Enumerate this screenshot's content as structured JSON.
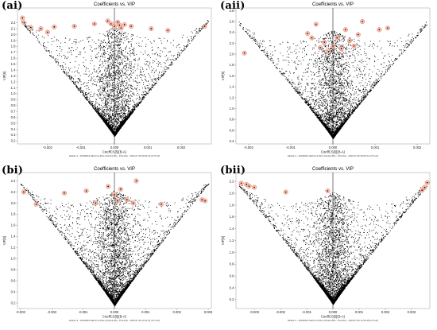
{
  "chart_data": [
    {
      "type": "scatter",
      "panel_label": "(ai)",
      "title": "Coefficients vs. VIP",
      "xlabel": "CoeffCS[5](B-A)",
      "ylabel": "VIP[5]",
      "footnote": "EZ4A1-3 - 20230610-SECCI-4-Pilot (CH4A1-B4) - PLS-DA) - 2023-07-26 09:51:20 (UTC+8)",
      "xlim": [
        -0.0029,
        0.0029
      ],
      "ylim": [
        0.15,
        2.45
      ],
      "xticks": [
        "-0.002",
        "-0.001",
        "0.000",
        "0.001",
        "0.002"
      ],
      "xtick_values": [
        -0.002,
        -0.001,
        0,
        0.001,
        0.002
      ],
      "yticks": [
        "0.2",
        "0.3",
        "0.4",
        "0.5",
        "0.6",
        "0.7",
        "0.8",
        "0.9",
        "1.0",
        "1.1",
        "1.2",
        "1.3",
        "1.4",
        "1.5",
        "1.6",
        "1.7",
        "1.8",
        "1.9",
        "2.0",
        "2.1",
        "2.2"
      ],
      "ytick_values": [
        0.2,
        0.3,
        0.4,
        0.5,
        0.6,
        0.7,
        0.8,
        0.9,
        1.0,
        1.1,
        1.2,
        1.3,
        1.4,
        1.5,
        1.6,
        1.7,
        1.8,
        1.9,
        2.0,
        2.1,
        2.2
      ],
      "ymin_data": 0.28,
      "n_points": 4200,
      "highlighted": [
        [
          -0.00275,
          2.28
        ],
        [
          -0.0027,
          2.2
        ],
        [
          -0.0025,
          2.12
        ],
        [
          -0.0022,
          2.1
        ],
        [
          -0.002,
          2.04
        ],
        [
          -0.0018,
          2.13
        ],
        [
          -0.0012,
          2.14
        ],
        [
          -0.0006,
          2.18
        ],
        [
          -0.0002,
          2.23
        ],
        [
          -0.0001,
          2.18
        ],
        [
          0.0,
          2.14
        ],
        [
          0.0001,
          2.21
        ],
        [
          0.00015,
          2.16
        ],
        [
          0.0002,
          2.11
        ],
        [
          0.0003,
          2.17
        ],
        [
          0.0005,
          2.14
        ],
        [
          0.0011,
          2.1
        ],
        [
          0.0016,
          2.07
        ],
        [
          0.0027,
          2.14
        ]
      ]
    },
    {
      "type": "scatter",
      "panel_label": "(aii)",
      "title": "Coefficients vs. VIP",
      "xlabel": "CoeffCS[5](B-A)",
      "ylabel": "VIP[5]",
      "footnote": "EZ4A1-3 - 20230610-SECCI-4-Pilot (CH4A1-B4) - PLS-DA) - 2023-07-26 09:54:31 (UTC+8)",
      "xlim": [
        -0.0023,
        0.0023
      ],
      "ylim": [
        0.35,
        2.85
      ],
      "xticks": [
        "-0.002",
        "-0.001",
        "0.000",
        "0.001",
        "0.002"
      ],
      "xtick_values": [
        -0.002,
        -0.001,
        0,
        0.001,
        0.002
      ],
      "yticks": [
        "0.4",
        "0.6",
        "0.8",
        "1.0",
        "1.2",
        "1.4",
        "1.6",
        "1.8",
        "2.0",
        "2.2",
        "2.4",
        "2.6",
        "2.8"
      ],
      "ytick_values": [
        0.4,
        0.6,
        0.8,
        1.0,
        1.2,
        1.4,
        1.6,
        1.8,
        2.0,
        2.2,
        2.4,
        2.6,
        2.8
      ],
      "ymin_data": 0.45,
      "n_points": 4200,
      "highlighted": [
        [
          -0.0021,
          2.02
        ],
        [
          -0.0006,
          2.38
        ],
        [
          -0.0005,
          2.3
        ],
        [
          -0.0004,
          2.55
        ],
        [
          -0.0003,
          2.12
        ],
        [
          -0.0002,
          2.22
        ],
        [
          -0.0001,
          2.05
        ],
        [
          0.0,
          2.15
        ],
        [
          0.0001,
          2.3
        ],
        [
          0.0002,
          2.1
        ],
        [
          0.0003,
          2.45
        ],
        [
          0.0004,
          2.25
        ],
        [
          0.0005,
          2.15
        ],
        [
          0.0006,
          2.36
        ],
        [
          0.0007,
          2.6
        ],
        [
          0.0011,
          2.45
        ],
        [
          0.0013,
          2.48
        ]
      ]
    },
    {
      "type": "scatter",
      "panel_label": "(bi)",
      "title": "Coefficients vs. VIP",
      "xlabel": "CoeffCS[5](B-A)",
      "ylabel": "VIP[5]",
      "footnote": "EZ4A1-3 - 20230610-SECCI-4-Pilot (CH4A1-B4) - PLS-DA) - 2023-07-26 10:11:34 (UTC+8)",
      "xlim": [
        -0.0031,
        0.0031
      ],
      "ylim": [
        0.1,
        2.55
      ],
      "xticks": [
        "-0.003",
        "-0.002",
        "-0.001",
        "0.000",
        "0.001",
        "0.002",
        "0.003"
      ],
      "xtick_values": [
        -0.003,
        -0.002,
        -0.001,
        0,
        0.001,
        0.002,
        0.003
      ],
      "yticks": [
        "0.2",
        "0.4",
        "0.6",
        "0.8",
        "1.0",
        "1.2",
        "1.4",
        "1.6",
        "1.8",
        "2.0",
        "2.2",
        "2.4"
      ],
      "ytick_values": [
        0.2,
        0.4,
        0.6,
        0.8,
        1.0,
        1.2,
        1.4,
        1.6,
        1.8,
        2.0,
        2.2,
        2.4
      ],
      "ymin_data": 0.15,
      "n_points": 4800,
      "highlighted": [
        [
          -0.0029,
          2.2
        ],
        [
          -0.0025,
          1.98
        ],
        [
          -0.0016,
          2.18
        ],
        [
          -0.0009,
          2.22
        ],
        [
          -0.0006,
          2.0
        ],
        [
          -0.0002,
          2.3
        ],
        [
          0.0,
          2.15
        ],
        [
          0.0001,
          2.04
        ],
        [
          0.0002,
          2.25
        ],
        [
          0.0004,
          2.06
        ],
        [
          0.0006,
          2.0
        ],
        [
          0.0007,
          2.4
        ],
        [
          0.0015,
          1.98
        ],
        [
          0.0028,
          2.06
        ],
        [
          0.0029,
          2.04
        ]
      ]
    },
    {
      "type": "scatter",
      "panel_label": "(bii)",
      "title": "Coefficients vs. VIP",
      "xlabel": "CoeffCS[5](B-A)",
      "ylabel": "VIP[5]",
      "footnote": "EZ4A1-3 - 20230610-SECCI-4-Pilot (CH4A1-B4) - PLS-DA) - 2023-07-26 10:36:38 (UTC+8)",
      "xlim": [
        -0.0037,
        0.0037
      ],
      "ylim": [
        0.05,
        2.35
      ],
      "xticks": [
        "-0.003",
        "-0.002",
        "-0.001",
        "0.000",
        "0.001",
        "0.002",
        "0.003"
      ],
      "xtick_values": [
        -0.003,
        -0.002,
        -0.001,
        0,
        0.001,
        0.002,
        0.003
      ],
      "yticks": [
        "0.2",
        "0.4",
        "0.6",
        "0.8",
        "1.0",
        "1.2",
        "1.4",
        "1.6",
        "1.8",
        "2.0",
        "2.2"
      ],
      "ytick_values": [
        0.2,
        0.4,
        0.6,
        0.8,
        1.0,
        1.2,
        1.4,
        1.6,
        1.8,
        2.0,
        2.2
      ],
      "ymin_data": 0.12,
      "n_points": 4800,
      "highlighted": [
        [
          -0.0035,
          2.17
        ],
        [
          -0.0033,
          2.15
        ],
        [
          -0.0032,
          2.12
        ],
        [
          -0.003,
          2.1
        ],
        [
          -0.0018,
          2.02
        ],
        [
          -0.0002,
          2.04
        ],
        [
          0.0034,
          2.05
        ],
        [
          0.0035,
          2.1
        ],
        [
          0.0036,
          2.18
        ]
      ]
    }
  ],
  "colors": {
    "point": "#000000",
    "highlight_fill": "#f4b8a4",
    "highlight_stroke": "#e8604a",
    "axis": "#333333"
  }
}
